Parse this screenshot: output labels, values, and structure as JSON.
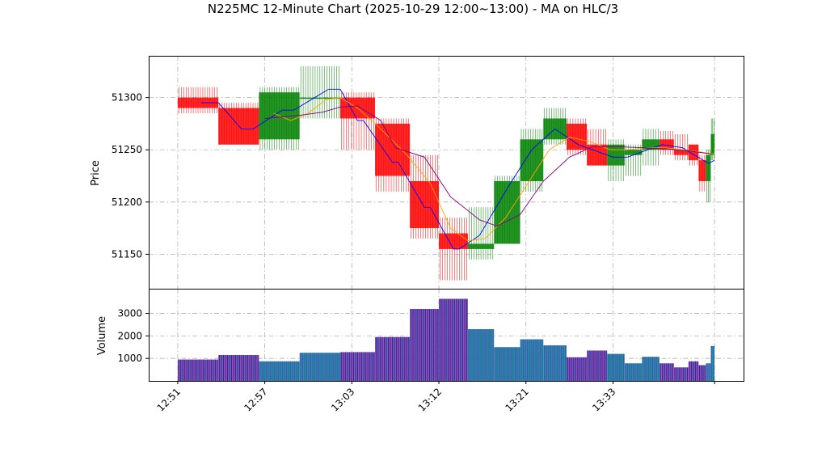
{
  "chart_data": {
    "type": "candlestick",
    "title": "N225MC 12-Minute Chart (2025-10-29 12:00~13:00) - MA on HLC/3",
    "price_panel": {
      "ylabel": "Price",
      "ylim": [
        51117,
        51340
      ],
      "yticks": [
        51150,
        51200,
        51250,
        51300
      ],
      "grid": true
    },
    "volume_panel": {
      "ylabel": "Volume",
      "ylim": [
        0,
        4100
      ],
      "yticks": [
        1000,
        2000,
        3000
      ],
      "grid": true
    },
    "xlim": [
      0,
      20.5
    ],
    "x_ticks": [
      {
        "x": 1.0,
        "label": "12:51"
      },
      {
        "x": 4.0,
        "label": "12:57"
      },
      {
        "x": 7.0,
        "label": "13:03"
      },
      {
        "x": 10.0,
        "label": "13:12"
      },
      {
        "x": 13.0,
        "label": "13:21"
      },
      {
        "x": 16.0,
        "label": "13:33"
      },
      {
        "x": 19.5,
        "label": ""
      }
    ],
    "colors": {
      "up": "#008000",
      "down": "#ff0000",
      "up_volume": "#008080",
      "down_volume": "#800080",
      "ma_short": "#0000ff",
      "ma_mid": "#ffa500",
      "ma_long": "#800080",
      "grid": "#b0b0b0"
    },
    "candles": [
      {
        "x0": 1.0,
        "x1": 2.4,
        "open": 51300,
        "high": 51310,
        "low": 51285,
        "close": 51290,
        "volume": 950
      },
      {
        "x0": 2.4,
        "x1": 3.8,
        "open": 51290,
        "high": 51295,
        "low": 51255,
        "close": 51255,
        "volume": 1150
      },
      {
        "x0": 3.8,
        "x1": 5.2,
        "open": 51260,
        "high": 51310,
        "low": 51250,
        "close": 51305,
        "volume": 870
      },
      {
        "x0": 5.2,
        "x1": 6.6,
        "open": 51300,
        "high": 51330,
        "low": 51280,
        "close": 51300,
        "volume": 1250
      },
      {
        "x0": 6.6,
        "x1": 7.8,
        "open": 51300,
        "high": 51305,
        "low": 51250,
        "close": 51280,
        "volume": 1280
      },
      {
        "x0": 7.8,
        "x1": 9.0,
        "open": 51275,
        "high": 51280,
        "low": 51210,
        "close": 51225,
        "volume": 1950
      },
      {
        "x0": 9.0,
        "x1": 10.0,
        "open": 51220,
        "high": 51245,
        "low": 51165,
        "close": 51175,
        "volume": 3200
      },
      {
        "x0": 10.0,
        "x1": 11.0,
        "open": 51170,
        "high": 51185,
        "low": 51125,
        "close": 51155,
        "volume": 3650
      },
      {
        "x0": 11.0,
        "x1": 11.9,
        "open": 51155,
        "high": 51195,
        "low": 51145,
        "close": 51160,
        "volume": 2300
      },
      {
        "x0": 11.9,
        "x1": 12.8,
        "open": 51160,
        "high": 51225,
        "low": 51160,
        "close": 51220,
        "volume": 1500
      },
      {
        "x0": 12.8,
        "x1": 13.6,
        "open": 51220,
        "high": 51270,
        "low": 51210,
        "close": 51260,
        "volume": 1850
      },
      {
        "x0": 13.6,
        "x1": 14.4,
        "open": 51260,
        "high": 51290,
        "low": 51255,
        "close": 51280,
        "volume": 1580
      },
      {
        "x0": 14.4,
        "x1": 15.1,
        "open": 51275,
        "high": 51280,
        "low": 51245,
        "close": 51250,
        "volume": 1050
      },
      {
        "x0": 15.1,
        "x1": 15.8,
        "open": 51255,
        "high": 51270,
        "low": 51235,
        "close": 51235,
        "volume": 1350
      },
      {
        "x0": 15.8,
        "x1": 16.4,
        "open": 51235,
        "high": 51260,
        "low": 51220,
        "close": 51255,
        "volume": 1200
      },
      {
        "x0": 16.4,
        "x1": 17.0,
        "open": 51245,
        "high": 51255,
        "low": 51225,
        "close": 51250,
        "volume": 780
      },
      {
        "x0": 17.0,
        "x1": 17.6,
        "open": 51250,
        "high": 51270,
        "low": 51235,
        "close": 51260,
        "volume": 1070
      },
      {
        "x0": 17.6,
        "x1": 18.1,
        "open": 51260,
        "high": 51268,
        "low": 51245,
        "close": 51250,
        "volume": 780
      },
      {
        "x0": 18.1,
        "x1": 18.6,
        "open": 51250,
        "high": 51265,
        "low": 51240,
        "close": 51245,
        "volume": 600
      },
      {
        "x0": 18.6,
        "x1": 18.95,
        "open": 51255,
        "high": 51255,
        "low": 51235,
        "close": 51240,
        "volume": 870
      },
      {
        "x0": 18.95,
        "x1": 19.2,
        "open": 51240,
        "high": 51245,
        "low": 51210,
        "close": 51220,
        "volume": 700
      },
      {
        "x0": 19.2,
        "x1": 19.37,
        "open": 51220,
        "high": 51250,
        "low": 51200,
        "close": 51245,
        "volume": 780
      },
      {
        "x0": 19.37,
        "x1": 19.5,
        "open": 51245,
        "high": 51280,
        "low": 51240,
        "close": 51265,
        "volume": 1550
      }
    ],
    "ma_series": [
      {
        "color_key": "ma_short",
        "points": [
          [
            1.8,
            51295
          ],
          [
            2.4,
            51295
          ],
          [
            3.2,
            51270
          ],
          [
            3.6,
            51270
          ],
          [
            4.6,
            51288
          ],
          [
            5.0,
            51288
          ],
          [
            6.2,
            51308
          ],
          [
            6.6,
            51308
          ],
          [
            7.2,
            51278
          ],
          [
            7.4,
            51278
          ],
          [
            8.4,
            51238
          ],
          [
            8.6,
            51238
          ],
          [
            9.5,
            51195
          ],
          [
            9.7,
            51195
          ],
          [
            10.5,
            51155
          ],
          [
            10.7,
            51155
          ],
          [
            11.4,
            51168
          ],
          [
            12.4,
            51215
          ],
          [
            13.2,
            51250
          ],
          [
            14.0,
            51270
          ],
          [
            14.8,
            51255
          ],
          [
            15.3,
            51250
          ],
          [
            16.0,
            51243
          ],
          [
            16.5,
            51243
          ],
          [
            17.2,
            51250
          ],
          [
            17.7,
            51255
          ],
          [
            18.4,
            51252
          ],
          [
            18.8,
            51245
          ],
          [
            19.3,
            51237
          ],
          [
            19.5,
            51240
          ]
        ]
      },
      {
        "color_key": "ma_mid",
        "points": [
          [
            4.3,
            51285
          ],
          [
            4.9,
            51278
          ],
          [
            5.5,
            51285
          ],
          [
            6.1,
            51298
          ],
          [
            6.6,
            51300
          ],
          [
            7.2,
            51290
          ],
          [
            8.0,
            51270
          ],
          [
            8.9,
            51245
          ],
          [
            9.7,
            51218
          ],
          [
            10.4,
            51175
          ],
          [
            11.0,
            51163
          ],
          [
            11.6,
            51165
          ],
          [
            12.3,
            51185
          ],
          [
            13.0,
            51215
          ],
          [
            13.8,
            51250
          ],
          [
            14.5,
            51262
          ],
          [
            15.2,
            51258
          ],
          [
            15.9,
            51250
          ],
          [
            16.5,
            51250
          ],
          [
            17.2,
            51252
          ],
          [
            17.8,
            51252
          ],
          [
            18.4,
            51250
          ],
          [
            19.0,
            51248
          ],
          [
            19.5,
            51246
          ]
        ]
      },
      {
        "color_key": "ma_long",
        "points": [
          [
            4.0,
            51280
          ],
          [
            5.2,
            51283
          ],
          [
            6.0,
            51286
          ],
          [
            6.6,
            51291
          ],
          [
            7.2,
            51292
          ],
          [
            8.0,
            51278
          ],
          [
            8.5,
            51252
          ],
          [
            9.5,
            51243
          ],
          [
            10.4,
            51205
          ],
          [
            11.4,
            51183
          ],
          [
            12.0,
            51177
          ],
          [
            12.8,
            51188
          ],
          [
            13.6,
            51220
          ],
          [
            14.5,
            51243
          ],
          [
            15.3,
            51253
          ],
          [
            16.2,
            51253
          ],
          [
            17.0,
            51252
          ],
          [
            17.8,
            51251
          ],
          [
            18.6,
            51249
          ],
          [
            19.4,
            51246
          ]
        ]
      }
    ]
  }
}
